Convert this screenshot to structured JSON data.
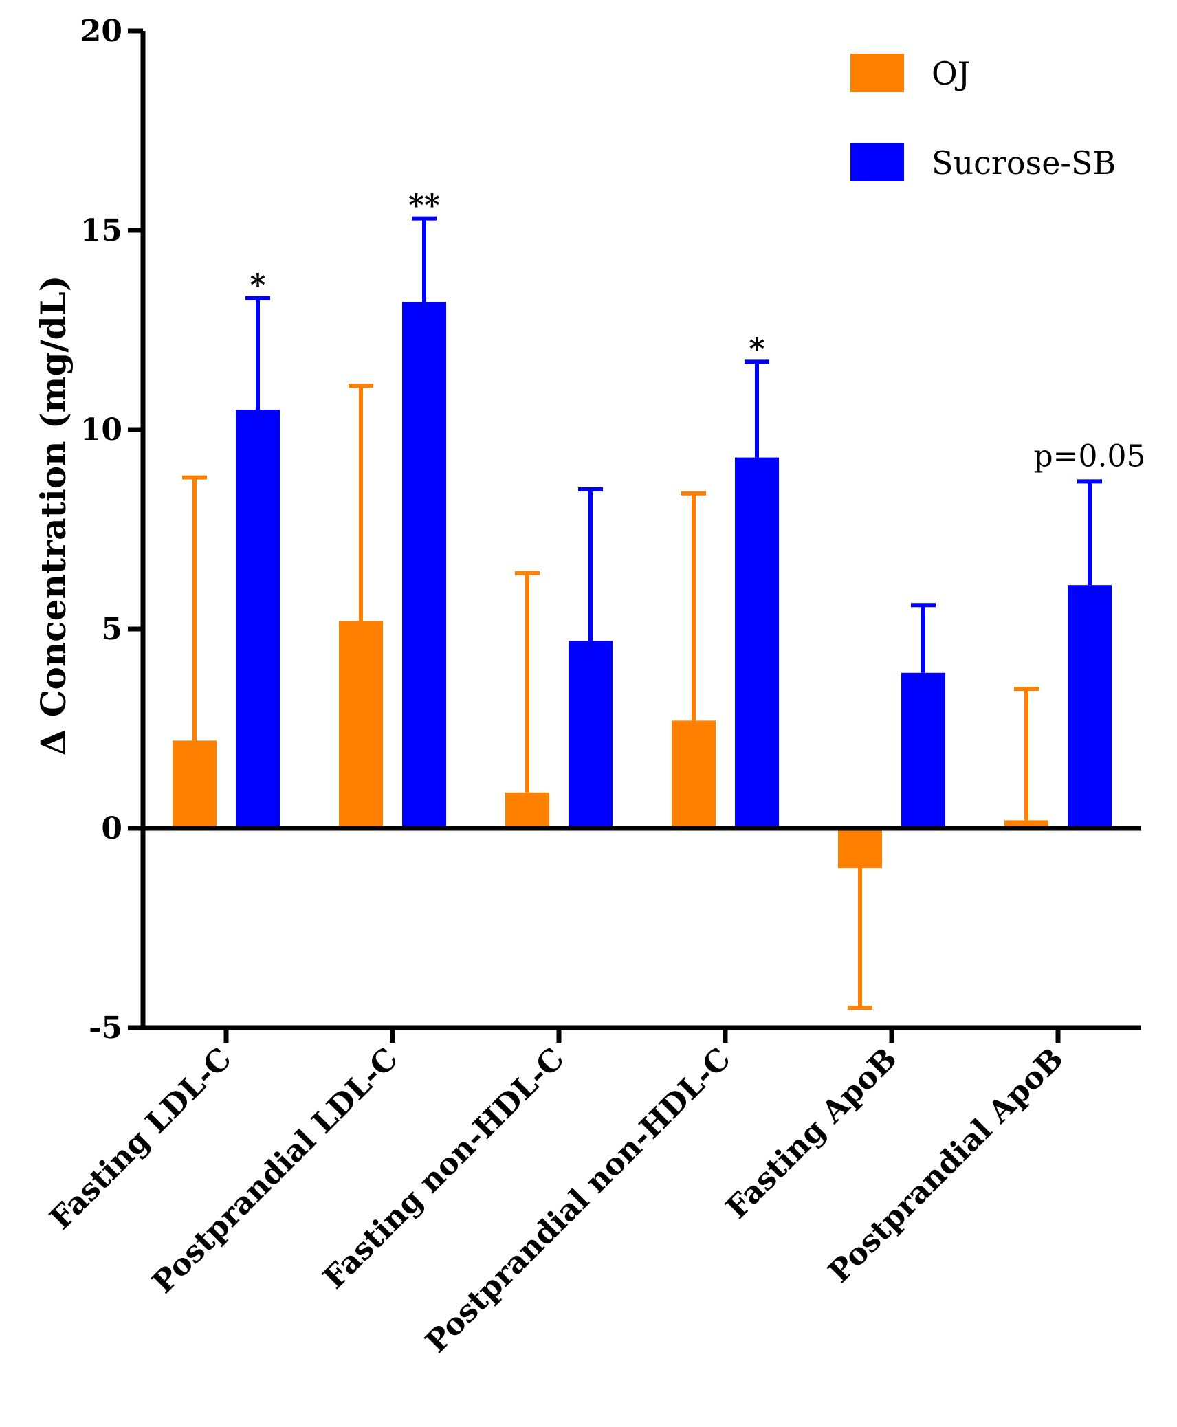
{
  "chart_data": {
    "type": "bar",
    "title": "",
    "xlabel": "",
    "ylabel": "Δ Concentration (mg/dL)",
    "ylim": [
      -5,
      20
    ],
    "yticks": [
      20,
      15,
      10,
      5,
      0,
      -5
    ],
    "categories": [
      "Fasting LDL-C",
      "Postprandial LDL-C",
      "Fasting non-HDL-C",
      "Postprandial non-HDL-C",
      "Fasting ApoB",
      "Postprandial ApoB"
    ],
    "series": [
      {
        "name": "OJ",
        "color": "#ff8000",
        "values": [
          2.2,
          5.2,
          0.9,
          2.7,
          -1.0,
          0.2
        ],
        "errors": [
          6.6,
          5.9,
          5.5,
          5.7,
          3.5,
          3.3
        ]
      },
      {
        "name": "Sucrose-SB",
        "color": "#0000ff",
        "values": [
          10.5,
          13.2,
          4.7,
          9.3,
          3.9,
          6.1
        ],
        "errors": [
          2.8,
          2.1,
          3.8,
          2.4,
          1.7,
          2.6
        ]
      }
    ],
    "annotations": [
      {
        "category": 0,
        "series": 1,
        "text": "*"
      },
      {
        "category": 1,
        "series": 1,
        "text": "**"
      },
      {
        "category": 3,
        "series": 1,
        "text": "*"
      },
      {
        "category": 5,
        "series": 1,
        "text": "p=0.05"
      }
    ],
    "legend_position": "top-right",
    "grid": false
  }
}
